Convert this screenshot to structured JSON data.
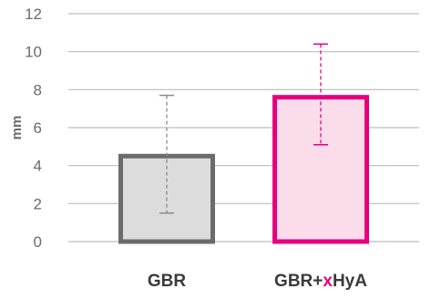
{
  "chart_data": {
    "type": "bar",
    "title": "",
    "xlabel": "",
    "ylabel": "mm",
    "ylim": [
      0,
      12
    ],
    "yticks": [
      0,
      2,
      4,
      6,
      8,
      10,
      12
    ],
    "grid": true,
    "categories": [
      "GBR",
      "GBR+xHyA"
    ],
    "category_label_parts": [
      {
        "pre": "GBR",
        "accent": "",
        "post": ""
      },
      {
        "pre": "GBR+",
        "accent": "x",
        "post": "HyA"
      }
    ],
    "values": [
      4.5,
      7.6
    ],
    "error_low": [
      1.5,
      5.1
    ],
    "error_high": [
      7.7,
      10.4
    ],
    "bar_colors": [
      {
        "fill": "#dcdcdc",
        "stroke": "#6b6b6b",
        "error": "#8a8a8a"
      },
      {
        "fill": "#fbdcea",
        "stroke": "#e6007e",
        "error": "#e6007e"
      }
    ],
    "accent_color": "#e6007e",
    "grid_color": "#bdbdbd"
  }
}
